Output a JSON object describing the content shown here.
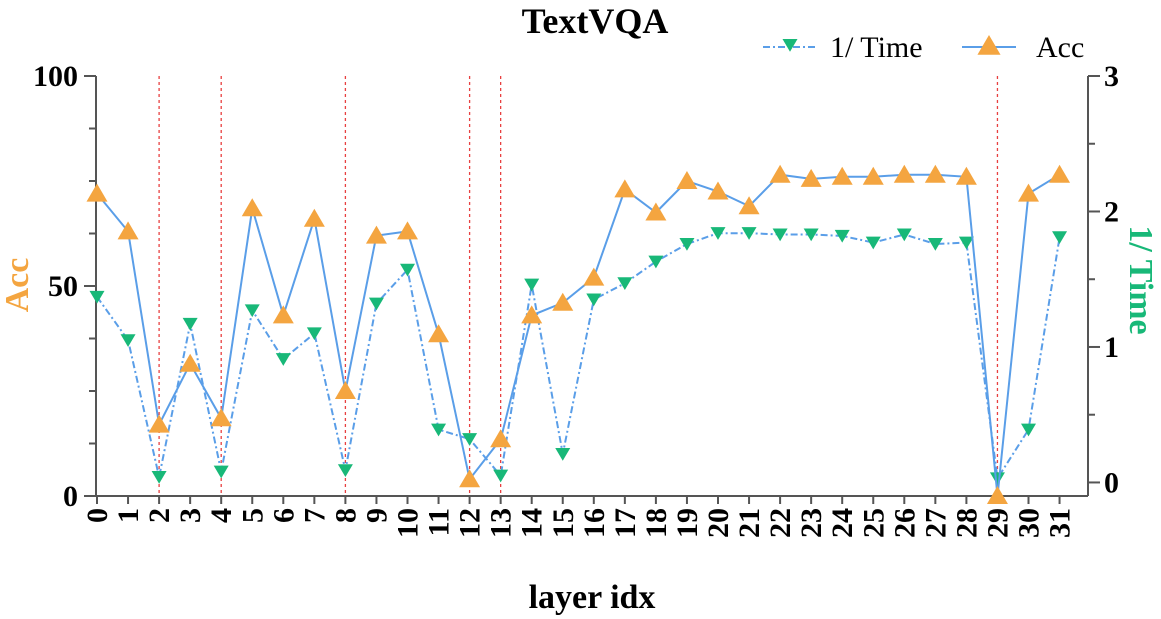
{
  "chart_data": {
    "type": "line",
    "title": "TextVQA",
    "xlabel": "layer idx",
    "ylabel_left": "Acc",
    "ylabel_right": "1/ Time",
    "x": [
      0,
      1,
      2,
      3,
      4,
      5,
      6,
      7,
      8,
      9,
      10,
      11,
      12,
      13,
      14,
      15,
      16,
      17,
      18,
      19,
      20,
      21,
      22,
      23,
      24,
      25,
      26,
      27,
      28,
      29,
      30,
      31
    ],
    "x_ticks": [
      "0",
      "1",
      "2",
      "3",
      "4",
      "5",
      "6",
      "7",
      "8",
      "9",
      "10",
      "11",
      "12",
      "13",
      "14",
      "15",
      "16",
      "17",
      "18",
      "19",
      "20",
      "21",
      "22",
      "23",
      "24",
      "25",
      "26",
      "27",
      "28",
      "29",
      "30",
      "31"
    ],
    "y_left_range": [
      0,
      100
    ],
    "y_left_ticks": [
      "0",
      "50",
      "100"
    ],
    "y_right_range": [
      -0.1,
      3
    ],
    "y_right_ticks": [
      "0",
      "1",
      "2",
      "3"
    ],
    "vlines": [
      2,
      4,
      8,
      12,
      13,
      29
    ],
    "legend_position": "top-right",
    "series": [
      {
        "name": "1/ Time",
        "axis": "right",
        "style": "dash-dot",
        "marker": "triangle-down",
        "values": [
          1.37,
          1.05,
          0.04,
          1.17,
          0.08,
          1.27,
          0.91,
          1.1,
          0.09,
          1.32,
          1.57,
          0.39,
          0.32,
          0.05,
          1.46,
          0.21,
          1.35,
          1.47,
          1.63,
          1.76,
          1.84,
          1.84,
          1.83,
          1.83,
          1.82,
          1.77,
          1.83,
          1.76,
          1.77,
          0.03,
          0.39,
          1.81
        ]
      },
      {
        "name": "Acc",
        "axis": "left",
        "style": "solid",
        "marker": "triangle-up",
        "values": [
          72,
          63,
          17,
          31.5,
          18.5,
          68.5,
          43,
          66,
          25,
          62,
          63,
          38.5,
          4,
          13.5,
          43,
          46,
          52,
          73,
          67.5,
          75,
          72.5,
          69,
          76.5,
          75.5,
          76,
          76,
          76.5,
          76.5,
          76,
          0,
          72,
          76.5
        ]
      }
    ],
    "colors": {
      "acc": "#5a9ee8",
      "acc_marker": "#f4a540",
      "time": "#5a9ee8",
      "time_marker": "#18b878",
      "vline": "#e84040",
      "acc_label": "#f4a540",
      "time_label": "#18b878"
    }
  }
}
